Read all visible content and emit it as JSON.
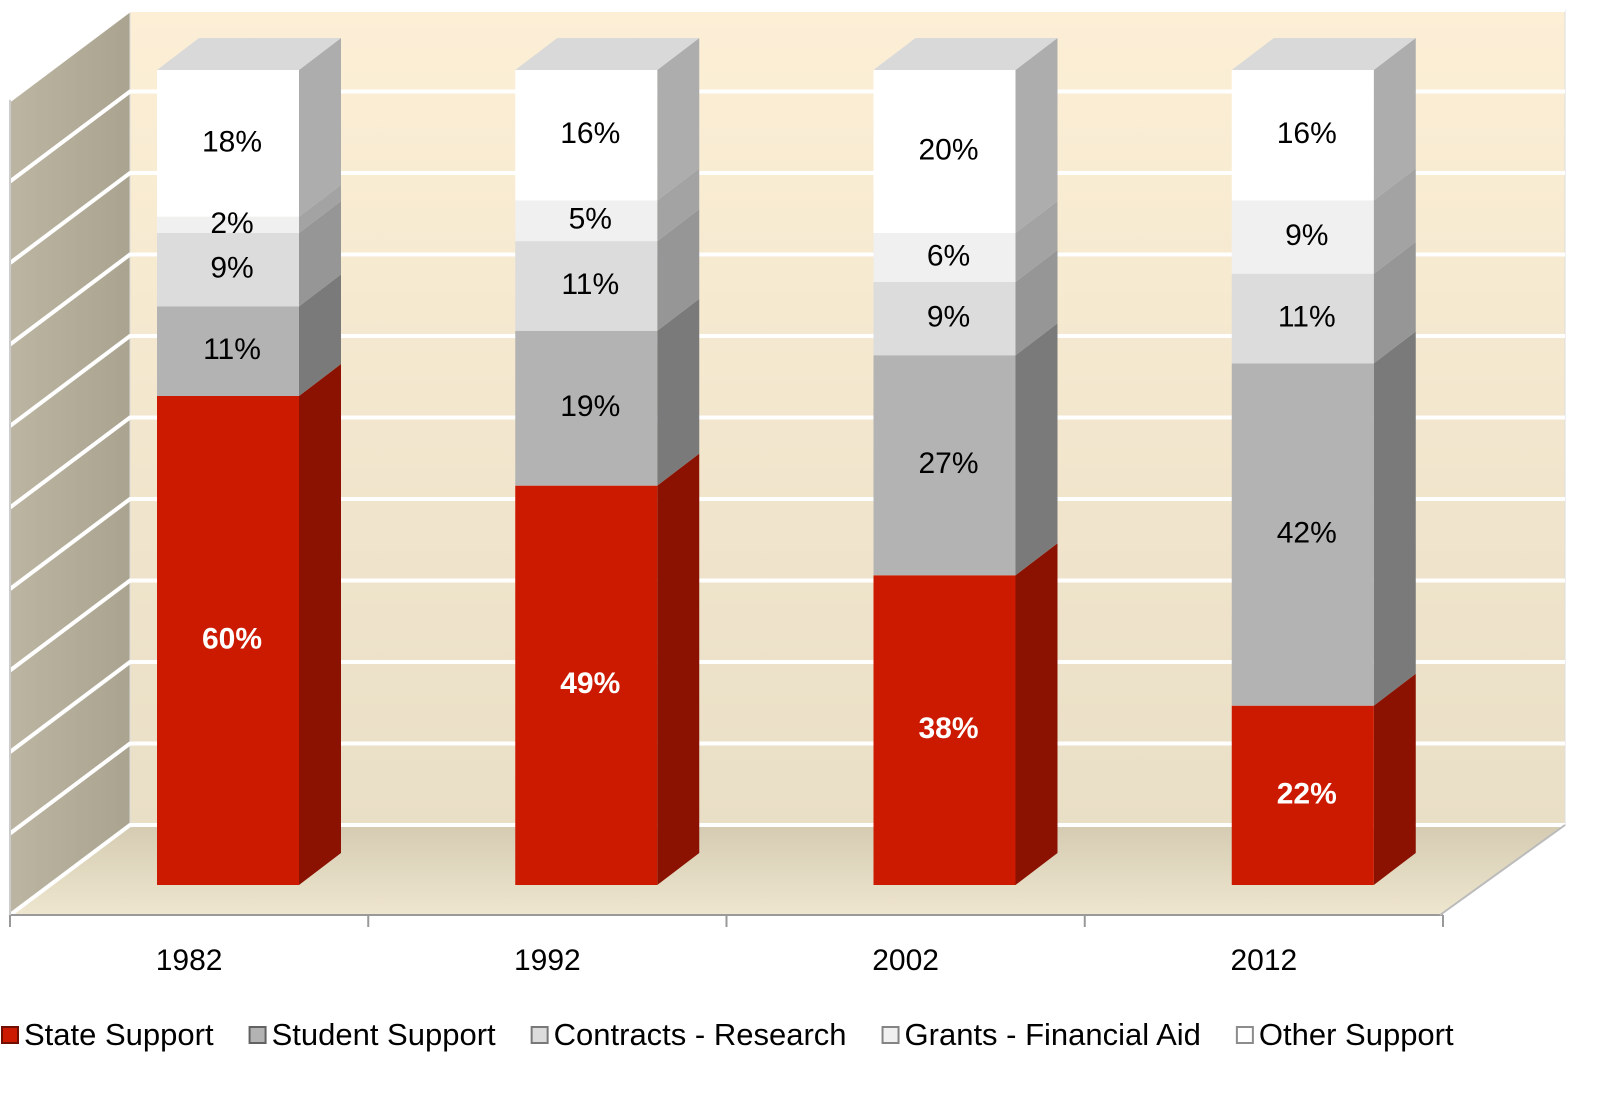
{
  "chart_data": {
    "type": "bar",
    "stacked": true,
    "three_d": true,
    "categories": [
      "1982",
      "1992",
      "2002",
      "2012"
    ],
    "series": [
      {
        "name": "State Support",
        "color": "#cc1a00",
        "label_color": "#ffffff",
        "values": [
          60,
          49,
          38,
          22
        ],
        "value_labels": [
          "60%",
          "49%",
          "38%",
          "22%"
        ]
      },
      {
        "name": "Student Support",
        "color": "#b3b3b3",
        "label_color": "#000000",
        "values": [
          11,
          19,
          27,
          42
        ],
        "value_labels": [
          "11%",
          "19%",
          "27%",
          "42%"
        ]
      },
      {
        "name": "Contracts - Research",
        "color": "#dcdcdc",
        "label_color": "#000000",
        "values": [
          9,
          11,
          9,
          11
        ],
        "value_labels": [
          "9%",
          "11%",
          "9%",
          "11%"
        ]
      },
      {
        "name": "Grants - Financial Aid",
        "color": "#f0f0f0",
        "label_color": "#000000",
        "values": [
          2,
          5,
          6,
          9
        ],
        "value_labels": [
          "2%",
          "5%",
          "6%",
          "9%"
        ]
      },
      {
        "name": "Other Support",
        "color": "#ffffff",
        "label_color": "#000000",
        "values": [
          18,
          16,
          20,
          16
        ],
        "value_labels": [
          "18%",
          "16%",
          "20%",
          "16%"
        ]
      }
    ],
    "ylim": [
      0,
      100
    ],
    "yticks": [
      0,
      10,
      20,
      30,
      40,
      50,
      60,
      70,
      80,
      90,
      100
    ],
    "grid": true,
    "legend": "bottom"
  }
}
